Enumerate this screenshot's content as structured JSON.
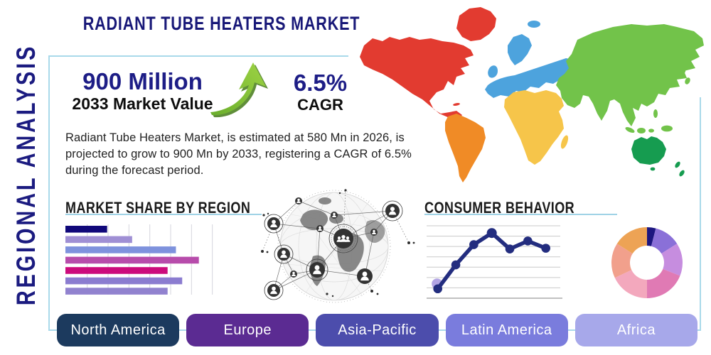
{
  "page": {
    "vertical_title": "REGIONAL ANALYSIS",
    "title": "RADIANT TUBE HEATERS MARKET"
  },
  "stats": {
    "market_value": "900 Million",
    "market_value_caption": "2033 Market Value",
    "cagr_value": "6.5%",
    "cagr_caption": "CAGR",
    "arrow_color": "#7dbf3c"
  },
  "description": "Radiant Tube Heaters Market, is estimated at 580 Mn in 2026, is projected to grow to 900 Mn by 2033, registering a CAGR of 6.5% during the forecast period.",
  "sections": {
    "market_share_title": "MARKET SHARE BY REGION",
    "consumer_behavior_title": "CONSUMER BEHAVIOR"
  },
  "buttons": [
    {
      "label": "North America",
      "color": "#1c3a5e"
    },
    {
      "label": "Europe",
      "color": "#5b2b92"
    },
    {
      "label": "Asia-Pacific",
      "color": "#4c4dac"
    },
    {
      "label": "Latin America",
      "color": "#7a7cdd"
    },
    {
      "label": "Africa",
      "color": "#a7a8ea"
    }
  ],
  "map": {
    "colors": {
      "north_america": "#e23b30",
      "greenland": "#e23b30",
      "south_america": "#f08b26",
      "europe": "#4da3dd",
      "africa": "#f6c54a",
      "asia": "#72c34a",
      "australia": "#169c50"
    }
  },
  "colors": {
    "box_border": "#a9d9ea",
    "heading_navy": "#1b1b80",
    "heading_black": "#1b1b1b"
  },
  "chart_data": [
    {
      "type": "bar",
      "title": "MARKET SHARE BY REGION",
      "orientation": "horizontal",
      "categories": [
        "",
        "",
        "",
        "",
        "",
        "",
        ""
      ],
      "values": [
        2.0,
        3.2,
        5.3,
        6.4,
        4.9,
        5.6,
        4.9
      ],
      "xlim": [
        0,
        7.5
      ],
      "grid": true,
      "axis_note": "x gridlines unlabeled, 1 unit per gridline; values estimated",
      "bar_colors": [
        "#10087a",
        "#9f8fd4",
        "#7e92dd",
        "#b74cab",
        "#cc0b7c",
        "#8b7cd0",
        "#9182cf"
      ]
    },
    {
      "type": "line",
      "title": "CONSUMER BEHAVIOR",
      "x": [
        1,
        2,
        3,
        4,
        5,
        6,
        7
      ],
      "values": [
        13,
        46,
        74,
        90,
        68,
        79,
        69
      ],
      "ylim": [
        0,
        105
      ],
      "gridlines": 8,
      "grid": true,
      "line_color": "#232d7f",
      "start_marker_color": "#b2a4e4",
      "axis_note": "axes unlabeled; values estimated on 0-100 scale"
    },
    {
      "type": "pie",
      "donut": true,
      "values": [
        4,
        12,
        15,
        19,
        18,
        16,
        16
      ],
      "labels": [
        "",
        "",
        "",
        "",
        "",
        "",
        ""
      ],
      "colors": [
        "#1c1680",
        "#8a70d8",
        "#c68ddf",
        "#e07ab4",
        "#f3a8bd",
        "#f1a08c",
        "#eda355"
      ],
      "start_angle_deg": 0,
      "direction": "clockwise",
      "axis_note": "segments unlabeled; percentages estimated"
    }
  ]
}
